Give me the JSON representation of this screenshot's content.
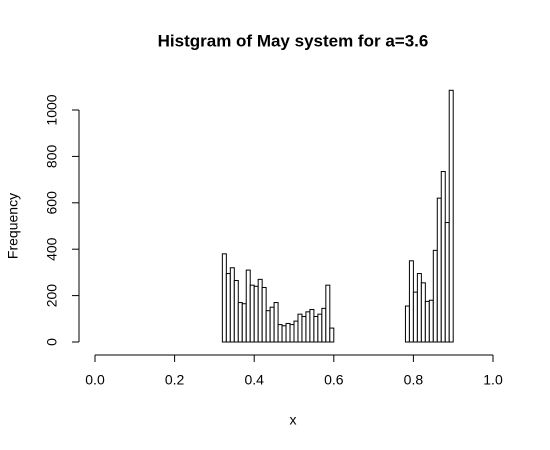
{
  "chart_data": {
    "type": "histogram",
    "title": "Histgram of May system for a=3.6",
    "x_label": "x",
    "y_label": "Frequency",
    "bins": [
      0,
      0.01,
      0.02,
      0.03,
      0.04,
      0.05,
      0.06,
      0.07,
      0.08,
      0.09,
      0.1,
      0.11,
      0.12,
      0.13,
      0.14,
      0.15,
      0.16,
      0.17,
      0.18,
      0.19,
      0.2,
      0.21,
      0.22,
      0.23,
      0.24,
      0.25,
      0.26,
      0.27,
      0.28,
      0.29,
      0.3,
      0.31,
      0.32,
      0.33,
      0.34,
      0.35,
      0.36,
      0.37,
      0.38,
      0.39,
      0.4,
      0.41,
      0.42,
      0.43,
      0.44,
      0.45,
      0.46,
      0.47,
      0.48,
      0.49,
      0.5,
      0.51,
      0.52,
      0.53,
      0.54,
      0.55,
      0.56,
      0.57,
      0.58,
      0.59,
      0.6,
      0.61,
      0.62,
      0.63,
      0.64,
      0.65,
      0.66,
      0.67,
      0.68,
      0.69,
      0.7,
      0.71,
      0.72,
      0.73,
      0.74,
      0.75,
      0.76,
      0.77,
      0.78,
      0.79,
      0.8,
      0.81,
      0.82,
      0.83,
      0.84,
      0.85,
      0.86,
      0.87,
      0.88,
      0.89,
      0.9,
      0.91,
      0.92,
      0.93,
      0.94,
      0.95,
      0.96,
      0.97,
      0.98,
      0.99,
      1
    ],
    "values": [
      0,
      0,
      0,
      0,
      0,
      0,
      0,
      0,
      0,
      0,
      0,
      0,
      0,
      0,
      0,
      0,
      0,
      0,
      0,
      0,
      0,
      0,
      0,
      0,
      0,
      0,
      0,
      0,
      0,
      0,
      0,
      0,
      380,
      295,
      320,
      265,
      170,
      165,
      310,
      245,
      240,
      270,
      235,
      135,
      150,
      170,
      75,
      70,
      80,
      75,
      90,
      120,
      110,
      130,
      140,
      110,
      120,
      145,
      245,
      60,
      0,
      0,
      0,
      0,
      0,
      0,
      0,
      0,
      0,
      0,
      0,
      0,
      0,
      0,
      0,
      0,
      0,
      0,
      155,
      350,
      215,
      295,
      255,
      175,
      180,
      395,
      620,
      735,
      515,
      1085,
      0,
      0,
      0,
      0,
      0,
      0,
      0,
      0,
      0,
      0
    ],
    "color": "#ffffff",
    "xlim": [
      0,
      1
    ],
    "xticks": [
      {
        "value": 0,
        "label": "0.0"
      },
      0.2,
      0.4,
      0.6,
      0.8,
      {
        "value": 1,
        "label": "1.0"
      }
    ],
    "ylim": [
      0,
      1000
    ],
    "yticks": [
      0,
      200,
      400,
      600,
      800,
      1000
    ]
  }
}
